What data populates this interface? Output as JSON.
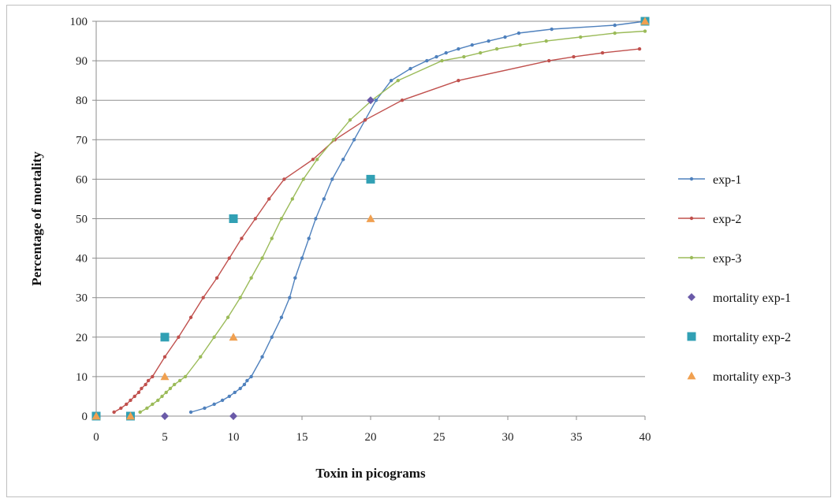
{
  "chart_data": {
    "type": "line+scatter",
    "xlabel": "Toxin in picograms",
    "ylabel": "Percentage of mortality",
    "xlim": [
      0,
      40
    ],
    "ylim": [
      0,
      100
    ],
    "xticks": [
      "0",
      "5",
      "10",
      "15",
      "20",
      "25",
      "30",
      "35",
      "40"
    ],
    "yticks": [
      "0",
      "10",
      "20",
      "30",
      "40",
      "50",
      "60",
      "70",
      "80",
      "90",
      "100"
    ],
    "grid": "horizontal",
    "legend_position": "right",
    "series": [
      {
        "name": "exp-1",
        "kind": "line",
        "color": "#4f81bd",
        "points": [
          [
            6.9,
            1
          ],
          [
            7.9,
            2
          ],
          [
            8.6,
            3
          ],
          [
            9.2,
            4
          ],
          [
            9.7,
            5
          ],
          [
            10.1,
            6
          ],
          [
            10.5,
            7
          ],
          [
            10.8,
            8
          ],
          [
            11.0,
            9
          ],
          [
            11.3,
            10
          ],
          [
            12.1,
            15
          ],
          [
            12.8,
            20
          ],
          [
            13.5,
            25
          ],
          [
            14.1,
            30
          ],
          [
            14.5,
            35
          ],
          [
            15.0,
            40
          ],
          [
            15.5,
            45
          ],
          [
            16.0,
            50
          ],
          [
            16.6,
            55
          ],
          [
            17.2,
            60
          ],
          [
            18.0,
            65
          ],
          [
            18.8,
            70
          ],
          [
            19.6,
            75
          ],
          [
            20.4,
            80
          ],
          [
            21.5,
            85
          ],
          [
            22.9,
            88
          ],
          [
            24.1,
            90
          ],
          [
            24.8,
            91
          ],
          [
            25.5,
            92
          ],
          [
            26.4,
            93
          ],
          [
            27.4,
            94
          ],
          [
            28.6,
            95
          ],
          [
            29.8,
            96
          ],
          [
            30.8,
            97
          ],
          [
            33.2,
            98
          ],
          [
            37.8,
            99
          ],
          [
            40,
            100
          ]
        ]
      },
      {
        "name": "exp-2",
        "kind": "line",
        "color": "#c0504d",
        "points": [
          [
            1.3,
            1
          ],
          [
            1.8,
            2
          ],
          [
            2.2,
            3
          ],
          [
            2.5,
            4
          ],
          [
            2.8,
            5
          ],
          [
            3.1,
            6
          ],
          [
            3.3,
            7
          ],
          [
            3.6,
            8
          ],
          [
            3.8,
            9
          ],
          [
            4.1,
            10
          ],
          [
            5.0,
            15
          ],
          [
            6.0,
            20
          ],
          [
            6.9,
            25
          ],
          [
            7.8,
            30
          ],
          [
            8.8,
            35
          ],
          [
            9.7,
            40
          ],
          [
            10.6,
            45
          ],
          [
            11.6,
            50
          ],
          [
            12.6,
            55
          ],
          [
            13.7,
            60
          ],
          [
            15.8,
            65
          ],
          [
            17.4,
            70
          ],
          [
            19.6,
            75
          ],
          [
            22.3,
            80
          ],
          [
            26.4,
            85
          ],
          [
            33.0,
            90
          ],
          [
            34.8,
            91
          ],
          [
            36.9,
            92
          ],
          [
            39.6,
            93
          ]
        ]
      },
      {
        "name": "exp-3",
        "kind": "line",
        "color": "#9bbb59",
        "points": [
          [
            3.2,
            1
          ],
          [
            3.7,
            2
          ],
          [
            4.1,
            3
          ],
          [
            4.5,
            4
          ],
          [
            4.8,
            5
          ],
          [
            5.1,
            6
          ],
          [
            5.4,
            7
          ],
          [
            5.7,
            8
          ],
          [
            6.1,
            9
          ],
          [
            6.5,
            10
          ],
          [
            7.6,
            15
          ],
          [
            8.6,
            20
          ],
          [
            9.6,
            25
          ],
          [
            10.5,
            30
          ],
          [
            11.3,
            35
          ],
          [
            12.1,
            40
          ],
          [
            12.8,
            45
          ],
          [
            13.5,
            50
          ],
          [
            14.3,
            55
          ],
          [
            15.1,
            60
          ],
          [
            16.1,
            65
          ],
          [
            17.3,
            70
          ],
          [
            18.5,
            75
          ],
          [
            20.1,
            80
          ],
          [
            22.0,
            85
          ],
          [
            25.2,
            90
          ],
          [
            26.8,
            91
          ],
          [
            28.0,
            92
          ],
          [
            29.2,
            93
          ],
          [
            30.9,
            94
          ],
          [
            32.8,
            95
          ],
          [
            35.3,
            96
          ],
          [
            37.8,
            97
          ],
          [
            40,
            97.5
          ]
        ]
      },
      {
        "name": "mortality exp-1",
        "kind": "scatter",
        "marker": "diamond",
        "color": "#6a5aa8",
        "points": [
          [
            0,
            0
          ],
          [
            2.5,
            0
          ],
          [
            5,
            0
          ],
          [
            10,
            0
          ],
          [
            20,
            80
          ],
          [
            40,
            100
          ]
        ]
      },
      {
        "name": "mortality exp-2",
        "kind": "scatter",
        "marker": "square",
        "color": "#31a0b4",
        "points": [
          [
            0,
            0
          ],
          [
            2.5,
            0
          ],
          [
            5,
            20
          ],
          [
            10,
            50
          ],
          [
            20,
            60
          ],
          [
            40,
            100
          ]
        ]
      },
      {
        "name": "mortality exp-3",
        "kind": "scatter",
        "marker": "triangle",
        "color": "#f0a050",
        "points": [
          [
            0,
            0
          ],
          [
            2.5,
            0
          ],
          [
            5,
            10
          ],
          [
            10,
            20
          ],
          [
            20,
            50
          ],
          [
            40,
            100
          ]
        ]
      }
    ]
  }
}
